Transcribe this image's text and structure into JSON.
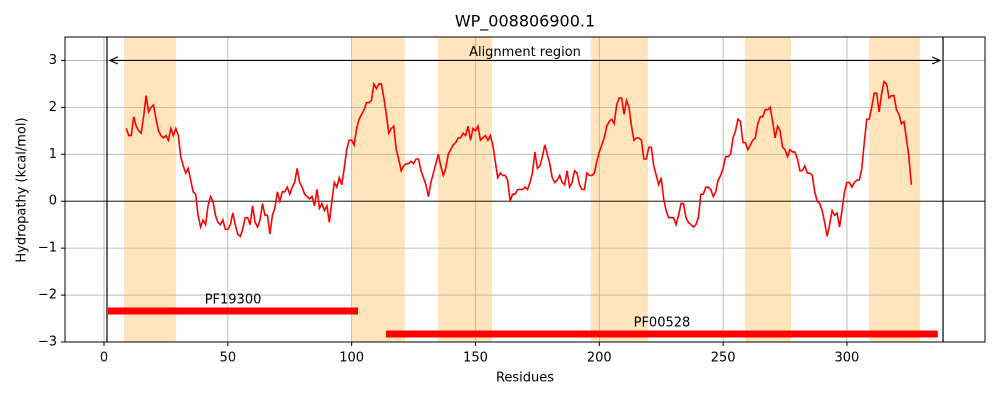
{
  "chart_data": {
    "type": "line",
    "title": "WP_008806900.1",
    "xlabel": "Residues",
    "ylabel": "Hydropathy (kcal/mol)",
    "xlim": [
      -15.75,
      355.75
    ],
    "ylim": [
      -3,
      3.5
    ],
    "xticks": [
      0,
      50,
      100,
      150,
      200,
      250,
      300
    ],
    "yticks": [
      {
        "value": -3,
        "label": "−3"
      },
      {
        "value": -2,
        "label": "−2"
      },
      {
        "value": -1,
        "label": "−1"
      },
      0,
      1,
      2,
      3
    ],
    "grid": true,
    "hline": 0,
    "region_color": "#ffe4bc",
    "regions": [
      [
        8.1,
        29
      ],
      [
        100.1,
        121.5
      ],
      [
        134.9,
        156.7
      ],
      [
        196.6,
        219.6
      ],
      [
        258.8,
        277.4
      ],
      [
        308.9,
        329.5
      ]
    ],
    "alignment": {
      "label": "Alignment region",
      "start": 1.2,
      "end": 338.8,
      "y": 3
    },
    "domains": [
      {
        "name": "PF19300",
        "start": 1.6,
        "end": 102.6,
        "y": -2.34,
        "color": "#ff0000"
      },
      {
        "name": "PF00528",
        "start": 113.9,
        "end": 336.7,
        "y": -2.83,
        "color": "#ff0000"
      }
    ],
    "x": [
      9,
      10,
      11,
      12,
      13,
      14,
      15,
      16,
      17,
      18,
      19,
      20,
      21,
      22,
      23,
      24,
      25,
      26,
      27,
      28,
      29,
      30,
      31,
      32,
      33,
      34,
      35,
      36,
      37,
      38,
      39,
      40,
      41,
      42,
      43,
      44,
      45,
      46,
      47,
      48,
      49,
      50,
      51,
      52,
      53,
      54,
      55,
      56,
      57,
      58,
      59,
      60,
      61,
      62,
      63,
      64,
      65,
      66,
      67,
      68,
      69,
      70,
      71,
      72,
      73,
      74,
      75,
      76,
      77,
      78,
      79,
      80,
      81,
      82,
      83,
      84,
      85,
      86,
      87,
      88,
      89,
      90,
      91,
      92,
      93,
      94,
      95,
      96,
      97,
      98,
      99,
      100,
      101,
      102,
      103,
      104,
      105,
      106,
      107,
      108,
      109,
      110,
      111,
      112,
      113,
      114,
      115,
      116,
      117,
      118,
      119,
      120,
      121,
      122,
      123,
      124,
      125,
      126,
      127,
      128,
      129,
      130,
      131,
      132,
      133,
      134,
      135,
      136,
      137,
      138,
      139,
      140,
      141,
      142,
      143,
      144,
      145,
      146,
      147,
      148,
      149,
      150,
      151,
      152,
      153,
      154,
      155,
      156,
      157,
      158,
      159,
      160,
      161,
      162,
      163,
      164,
      165,
      166,
      167,
      168,
      169,
      170,
      171,
      172,
      173,
      174,
      175,
      176,
      177,
      178,
      179,
      180,
      181,
      182,
      183,
      184,
      185,
      186,
      187,
      188,
      189,
      190,
      191,
      192,
      193,
      194,
      195,
      196,
      197,
      198,
      199,
      200,
      201,
      202,
      203,
      204,
      205,
      206,
      207,
      208,
      209,
      210,
      211,
      212,
      213,
      214,
      215,
      216,
      217,
      218,
      219,
      220,
      221,
      222,
      223,
      224,
      225,
      226,
      227,
      228,
      229,
      230,
      231,
      232,
      233,
      234,
      235,
      236,
      237,
      238,
      239,
      240,
      241,
      242,
      243,
      244,
      245,
      246,
      247,
      248,
      249,
      250,
      251,
      252,
      253,
      254,
      255,
      256,
      257,
      258,
      259,
      260,
      261,
      262,
      263,
      264,
      265,
      266,
      267,
      268,
      269,
      270,
      271,
      272,
      273,
      274,
      275,
      276,
      277,
      278,
      279,
      280,
      281,
      282,
      283,
      284,
      285,
      286,
      287,
      288,
      289,
      290,
      291,
      292,
      293,
      294,
      295,
      296,
      297,
      298,
      299,
      300,
      301,
      302,
      303,
      304,
      305,
      306,
      307,
      308,
      309,
      310,
      311,
      312,
      313,
      314,
      315,
      316,
      317,
      318,
      319,
      320,
      321,
      322,
      323,
      324,
      325,
      326
    ],
    "series": [
      {
        "color": "#ff0000",
        "values": [
          1.55,
          1.4,
          1.4,
          1.8,
          1.6,
          1.5,
          1.45,
          1.8,
          2.25,
          1.9,
          2.0,
          2.05,
          1.75,
          1.5,
          1.4,
          1.35,
          1.4,
          1.3,
          1.55,
          1.4,
          1.55,
          1.4,
          0.95,
          0.75,
          0.6,
          0.7,
          0.45,
          0.2,
          0.15,
          -0.3,
          -0.55,
          -0.4,
          -0.5,
          -0.1,
          0.1,
          0.0,
          -0.3,
          -0.45,
          -0.5,
          -0.4,
          -0.6,
          -0.6,
          -0.5,
          -0.25,
          -0.5,
          -0.7,
          -0.75,
          -0.6,
          -0.35,
          -0.35,
          -0.5,
          -0.1,
          -0.45,
          -0.55,
          -0.4,
          -0.05,
          -0.3,
          -0.3,
          -0.7,
          -0.3,
          -0.15,
          0.2,
          0.0,
          0.2,
          0.2,
          0.3,
          0.15,
          0.3,
          0.4,
          0.7,
          0.4,
          0.3,
          0.15,
          0.1,
          0.05,
          0.1,
          -0.1,
          0.25,
          -0.15,
          -0.05,
          -0.2,
          -0.1,
          -0.45,
          0.0,
          0.4,
          0.3,
          0.5,
          0.35,
          0.7,
          1.1,
          1.3,
          1.3,
          1.2,
          1.55,
          1.75,
          1.85,
          1.95,
          2.1,
          2.1,
          2.15,
          2.5,
          2.4,
          2.5,
          2.5,
          2.2,
          1.85,
          1.45,
          1.55,
          1.6,
          1.1,
          0.9,
          0.65,
          0.75,
          0.8,
          0.8,
          0.85,
          0.8,
          0.9,
          0.9,
          0.65,
          0.5,
          0.35,
          0.1,
          0.4,
          0.6,
          0.8,
          1.0,
          0.75,
          0.55,
          0.7,
          1.0,
          1.1,
          1.2,
          1.25,
          1.35,
          1.35,
          1.45,
          1.4,
          1.6,
          1.3,
          1.55,
          1.5,
          1.6,
          1.3,
          1.35,
          1.4,
          1.3,
          1.4,
          1.2,
          0.85,
          0.5,
          0.6,
          0.55,
          0.55,
          0.45,
          0.0,
          0.15,
          0.15,
          0.25,
          0.25,
          0.25,
          0.3,
          0.25,
          0.4,
          0.6,
          1.05,
          0.7,
          0.75,
          0.95,
          1.2,
          1.0,
          0.8,
          0.5,
          0.4,
          0.45,
          0.55,
          0.4,
          0.35,
          0.65,
          0.3,
          0.4,
          0.65,
          0.6,
          0.35,
          0.25,
          0.25,
          0.6,
          0.55,
          0.55,
          0.6,
          0.85,
          1.05,
          1.2,
          1.35,
          1.6,
          1.7,
          1.75,
          1.65,
          2.05,
          2.2,
          2.2,
          1.85,
          2.15,
          2.0,
          1.6,
          1.3,
          1.35,
          1.35,
          1.3,
          0.9,
          0.9,
          1.15,
          1.15,
          0.75,
          0.55,
          0.35,
          0.5,
          0.05,
          -0.2,
          -0.35,
          -0.35,
          -0.35,
          -0.5,
          -0.3,
          -0.05,
          -0.05,
          -0.35,
          -0.45,
          -0.5,
          -0.55,
          -0.5,
          -0.35,
          0.15,
          0.15,
          0.3,
          0.3,
          0.25,
          0.1,
          0.2,
          0.45,
          0.55,
          0.7,
          0.95,
          0.95,
          1.0,
          1.35,
          1.5,
          1.75,
          1.7,
          1.25,
          1.25,
          1.1,
          1.2,
          1.3,
          1.35,
          1.65,
          1.8,
          1.8,
          1.95,
          1.95,
          2.0,
          1.7,
          1.35,
          1.6,
          1.5,
          1.15,
          1.1,
          0.95,
          1.1,
          1.05,
          1.05,
          0.9,
          0.65,
          0.65,
          0.75,
          0.6,
          0.6,
          0.55,
          0.2,
          0.0,
          -0.05,
          -0.2,
          -0.45,
          -0.75,
          -0.5,
          -0.2,
          -0.3,
          -0.25,
          -0.55,
          -0.2,
          0.2,
          0.4,
          0.4,
          0.3,
          0.4,
          0.45,
          0.45,
          0.7,
          1.25,
          1.75,
          1.75,
          2.0,
          2.3,
          2.3,
          1.9,
          2.3,
          2.55,
          2.5,
          2.2,
          2.25,
          2.25,
          1.95,
          1.85,
          1.65,
          1.7,
          1.35,
          0.95,
          0.35
        ]
      }
    ]
  }
}
